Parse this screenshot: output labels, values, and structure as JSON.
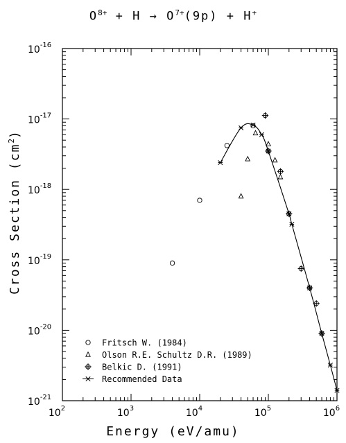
{
  "title": {
    "projectile": "O",
    "projectile_charge": "8+",
    "plus1": "+",
    "target": "H",
    "arrow": "→",
    "product": "O",
    "product_charge": "7+",
    "product_state": "(9p)",
    "plus2": "+",
    "ion": "H",
    "ion_charge": "+"
  },
  "xaxis": {
    "label": "Energy (eV/amu)"
  },
  "yaxis": {
    "label_pre": "Cross Section (cm",
    "label_exp": "2",
    "label_post": ")"
  },
  "chart_data": {
    "type": "scatter",
    "xscale": "log",
    "yscale": "log",
    "xlim": [
      100,
      1000000
    ],
    "ylim": [
      1e-21,
      1e-16
    ],
    "xlabel": "Energy (eV/amu)",
    "ylabel": "Cross Section (cm2)",
    "x_ticks": [
      {
        "base": "10",
        "exp": "2",
        "value": 100
      },
      {
        "base": "10",
        "exp": "3",
        "value": 1000
      },
      {
        "base": "10",
        "exp": "4",
        "value": 10000
      },
      {
        "base": "10",
        "exp": "5",
        "value": 100000
      },
      {
        "base": "10",
        "exp": "6",
        "value": 1000000
      }
    ],
    "y_ticks": [
      {
        "base": "10",
        "exp": "-21",
        "value": 1e-21
      },
      {
        "base": "10",
        "exp": "-20",
        "value": 1e-20
      },
      {
        "base": "10",
        "exp": "-19",
        "value": 1e-19
      },
      {
        "base": "10",
        "exp": "-18",
        "value": 1e-18
      },
      {
        "base": "10",
        "exp": "-17",
        "value": 1e-17
      },
      {
        "base": "10",
        "exp": "-16",
        "value": 1e-16
      }
    ],
    "legend_position": "bottom-left",
    "series": [
      {
        "name": "Fritsch W. (1984)",
        "marker": "circle",
        "x": [
          4000,
          10000,
          25000,
          60000
        ],
        "y": [
          9e-20,
          7e-19,
          4.2e-18,
          8e-18
        ]
      },
      {
        "name": "Olson R.E. Schultz D.R. (1989)",
        "marker": "triangle",
        "x": [
          40000,
          50000,
          65000,
          100000,
          125000,
          150000
        ],
        "y": [
          8e-19,
          2.7e-18,
          6.3e-18,
          4.4e-18,
          2.6e-18,
          1.5e-18
        ]
      },
      {
        "name": "Belkic D. (1991)",
        "marker": "circle-plus",
        "x": [
          90000,
          100000,
          150000,
          200000,
          300000,
          400000,
          500000,
          600000
        ],
        "y": [
          1.12e-17,
          3.5e-18,
          1.8e-18,
          4.5e-19,
          7.5e-20,
          4e-20,
          2.4e-20,
          9e-21
        ]
      },
      {
        "name": "Recommended Data",
        "marker": "asterisk",
        "line": true,
        "x": [
          20000,
          40000,
          60000,
          80000,
          100000,
          200000,
          220000,
          400000,
          600000,
          800000,
          1000000
        ],
        "y": [
          2.4e-18,
          7.5e-18,
          8.2e-18,
          6e-18,
          3.5e-18,
          4.5e-19,
          3.2e-19,
          4e-20,
          9e-21,
          3.2e-21,
          1.4e-21
        ]
      }
    ]
  }
}
